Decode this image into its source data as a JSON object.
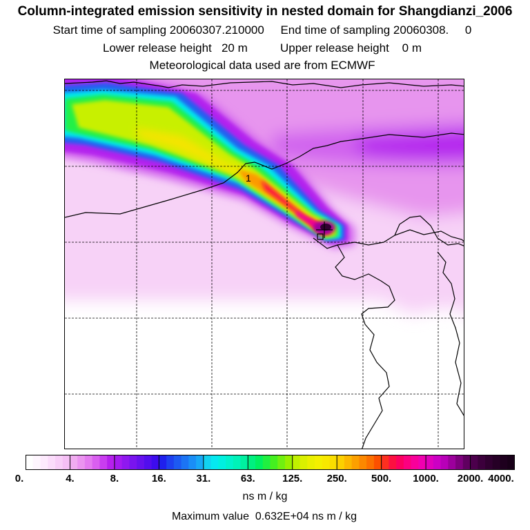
{
  "header": {
    "title": "Column-integrated emission sensitivity in nested domain for Shangdianzi_2006",
    "sampling_line": "Start time of sampling 20060307.210000     End time of sampling 20060308.     0",
    "release_line": "Lower release height   20 m          Upper release height    0 m",
    "met_line": "Meteorological data used are from ECMWF"
  },
  "map": {
    "release_marker_label": "1",
    "gridline_color": "#000000",
    "coastline_color": "#000000"
  },
  "colorbar": {
    "tick_labels": [
      "0.",
      "4.",
      "8.",
      "16.",
      "31.",
      "63.",
      "125.",
      "250.",
      "500.",
      "1000.",
      "2000.",
      "4000."
    ],
    "unit_label": "ns m / kg",
    "segments_per_interval": 6,
    "colors": [
      "#ffffff",
      "#fef6fe",
      "#fdeafd",
      "#fbdcfb",
      "#f8cef8",
      "#f5bff5",
      "#f0acf0",
      "#eb94f0",
      "#e47bf0",
      "#d95ff0",
      "#c93df0",
      "#b620ee",
      "#a51bf0",
      "#8f18ef",
      "#7914ef",
      "#6611ee",
      "#520eee",
      "#3d0cee",
      "#1f20ee",
      "#1e40f0",
      "#1d5af2",
      "#1c74f4",
      "#1a8ef6",
      "#18a8f6",
      "#12d2f0",
      "#05e8f0",
      "#00f0e0",
      "#00f2cc",
      "#00f2b8",
      "#00f0a0",
      "#00f080",
      "#00f060",
      "#20f040",
      "#44f020",
      "#70f010",
      "#98f000",
      "#c0f000",
      "#daf000",
      "#eaf000",
      "#f4f000",
      "#f8e800",
      "#fade00",
      "#fcd000",
      "#fcb800",
      "#fca000",
      "#fc8800",
      "#fc7000",
      "#fc5000",
      "#fc3020",
      "#fc1040",
      "#fc0060",
      "#fc0080",
      "#f8009a",
      "#f000b0",
      "#e000bc",
      "#cc00c4",
      "#b800b8",
      "#9c009c",
      "#7e007e",
      "#600060",
      "#4c004c",
      "#3c003c",
      "#300030",
      "#260026",
      "#1e001e",
      "#180018"
    ]
  },
  "footer": {
    "max_value_line": "Maximum value  0.632E+04 ns m / kg"
  },
  "plume_colors": {
    "background": "#ffffff",
    "pale": "#f7d2f7",
    "light_magenta": "#e795ee",
    "magenta": "#d062ee",
    "violet": "#b321ee",
    "blue": "#2060f0",
    "cyan": "#06e8f0",
    "green": "#22f046",
    "yellowgreen": "#c8f000",
    "yellow": "#f6e400",
    "orange": "#fc9a00",
    "red": "#fc1044",
    "deeppink": "#f0009c",
    "purple": "#9c009c",
    "dark": "#300030"
  }
}
